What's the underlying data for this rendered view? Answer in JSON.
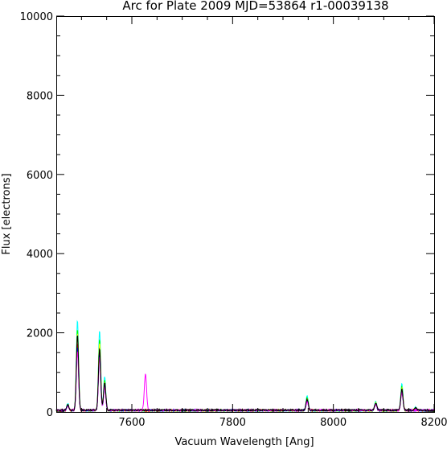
{
  "chart_data": {
    "type": "line",
    "title": "Arc for Plate 2009  MJD=53864  r1-00039138",
    "xlabel": "Vacuum Wavelength [Ang]",
    "ylabel": "Flux [electrons]",
    "xlim": [
      7450,
      8200
    ],
    "ylim": [
      0,
      10000
    ],
    "x_ticks": [
      7600,
      7800,
      8000,
      8200
    ],
    "y_ticks": [
      0,
      2000,
      4000,
      6000,
      8000,
      10000
    ],
    "x_tick_labels": [
      "7600",
      "7800",
      "8000",
      "8200"
    ],
    "y_tick_labels": [
      "0",
      "2000",
      "4000",
      "6000",
      "8000",
      "10000"
    ],
    "grid": false,
    "legend": "none",
    "baseline": 20,
    "series": [
      {
        "color": "#00ffff",
        "lines": [
          [
            7473,
            180
          ],
          [
            7492,
            2280
          ],
          [
            7536,
            2020
          ],
          [
            7546,
            850
          ],
          [
            7948,
            380
          ],
          [
            8084,
            230
          ],
          [
            8136,
            680
          ],
          [
            8163,
            80
          ]
        ]
      },
      {
        "color": "#00ff00",
        "lines": [
          [
            7473,
            150
          ],
          [
            7492,
            2050
          ],
          [
            7536,
            1800
          ],
          [
            7546,
            760
          ],
          [
            7948,
            330
          ],
          [
            8084,
            200
          ],
          [
            8136,
            600
          ],
          [
            8163,
            70
          ]
        ]
      },
      {
        "color": "#ffff00",
        "lines": [
          [
            7473,
            140
          ],
          [
            7492,
            1950
          ],
          [
            7536,
            1700
          ],
          [
            7546,
            720
          ],
          [
            7948,
            300
          ],
          [
            8084,
            190
          ],
          [
            8136,
            560
          ],
          [
            8163,
            60
          ]
        ]
      },
      {
        "color": "#ff0000",
        "lines": [
          [
            7473,
            120
          ],
          [
            7492,
            1700
          ],
          [
            7536,
            1500
          ],
          [
            7546,
            640
          ],
          [
            7948,
            260
          ],
          [
            8084,
            170
          ],
          [
            8136,
            500
          ]
        ]
      },
      {
        "color": "#0000ff",
        "lines": [
          [
            7473,
            110
          ],
          [
            7492,
            1600
          ],
          [
            7536,
            1400
          ],
          [
            7546,
            600
          ],
          [
            7948,
            240
          ],
          [
            8084,
            160
          ],
          [
            8136,
            470
          ]
        ]
      },
      {
        "color": "#ff00ff",
        "lines": [
          [
            7473,
            100
          ],
          [
            7492,
            1500
          ],
          [
            7536,
            1350
          ],
          [
            7546,
            580
          ],
          [
            7627,
            920
          ],
          [
            7948,
            220
          ],
          [
            8084,
            150
          ],
          [
            8136,
            440
          ]
        ]
      },
      {
        "color": "#000000",
        "lines": [
          [
            7473,
            130
          ],
          [
            7492,
            1900
          ],
          [
            7536,
            1550
          ],
          [
            7546,
            700
          ],
          [
            7948,
            280
          ],
          [
            8084,
            180
          ],
          [
            8136,
            520
          ],
          [
            8163,
            60
          ]
        ]
      }
    ]
  }
}
